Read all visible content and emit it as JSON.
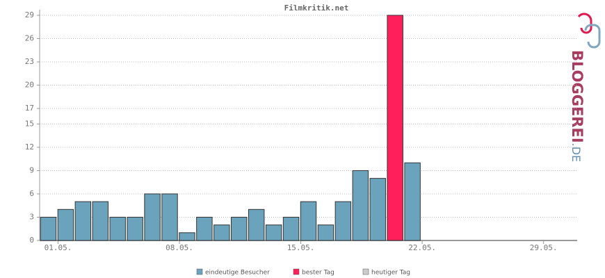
{
  "chart_data": {
    "type": "bar",
    "title": "Filmkritik.net",
    "categories": [
      "01.05.",
      null,
      null,
      null,
      null,
      null,
      null,
      "08.05.",
      null,
      null,
      null,
      null,
      null,
      null,
      "15.05.",
      null,
      null,
      null,
      null,
      null,
      null,
      "22.05.",
      null,
      null,
      null,
      null,
      null,
      null,
      "29.05.",
      null,
      null
    ],
    "series": [
      {
        "name": "eindeutige Besucher",
        "color": "#6ba3bc",
        "values": [
          3,
          4,
          5,
          5,
          3,
          3,
          6,
          6,
          1,
          3,
          2,
          3,
          4,
          2,
          3,
          5,
          2,
          5,
          9,
          8,
          null,
          10,
          null,
          null,
          null,
          null,
          null,
          null,
          null,
          null,
          null
        ]
      },
      {
        "name": "bester Tag",
        "color": "#ff1f5a",
        "values": [
          null,
          null,
          null,
          null,
          null,
          null,
          null,
          null,
          null,
          null,
          null,
          null,
          null,
          null,
          null,
          null,
          null,
          null,
          null,
          null,
          29,
          null,
          null,
          null,
          null,
          null,
          null,
          null,
          null,
          null,
          null
        ]
      },
      {
        "name": "heutiger Tag",
        "color": "#cccccc",
        "values": [
          null,
          null,
          null,
          null,
          null,
          null,
          null,
          null,
          null,
          null,
          null,
          null,
          null,
          null,
          null,
          null,
          null,
          null,
          null,
          null,
          null,
          null,
          null,
          null,
          null,
          null,
          null,
          null,
          null,
          null,
          null
        ]
      }
    ],
    "ylim": [
      0,
      29
    ],
    "yticks": [
      0,
      3,
      6,
      9,
      12,
      15,
      17,
      20,
      23,
      26,
      29
    ],
    "grid": true,
    "logo": [
      "BLOGGEREI",
      ".DE"
    ]
  }
}
